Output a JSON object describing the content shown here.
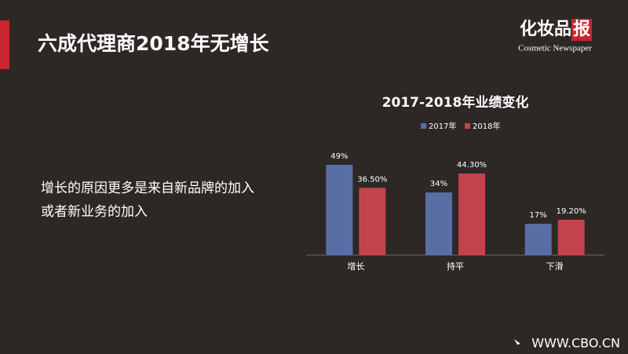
{
  "slide": {
    "title": "六成代理商2018年无增长",
    "body": [
      "增长的原因更多是来自新品牌的加入",
      "或者新业务的加入"
    ],
    "logo_main": "化妆品",
    "logo_mark": "报",
    "logo_sub": "Cosmetic Newspaper",
    "url": "WWW.CBO.CN"
  },
  "chart_data": {
    "type": "bar",
    "title": "2017-2018年业绩变化",
    "categories": [
      "增长",
      "持平",
      "下滑"
    ],
    "series": [
      {
        "name": "2017年",
        "color": "#5a6ea6",
        "values": [
          49,
          34,
          17
        ],
        "value_labels": [
          "49%",
          "34%",
          "17%"
        ]
      },
      {
        "name": "2018年",
        "color": "#c1444d",
        "values": [
          36.5,
          44.3,
          19.2
        ],
        "value_labels": [
          "36.50%",
          "44.30%",
          "19.20%"
        ]
      }
    ]
  }
}
